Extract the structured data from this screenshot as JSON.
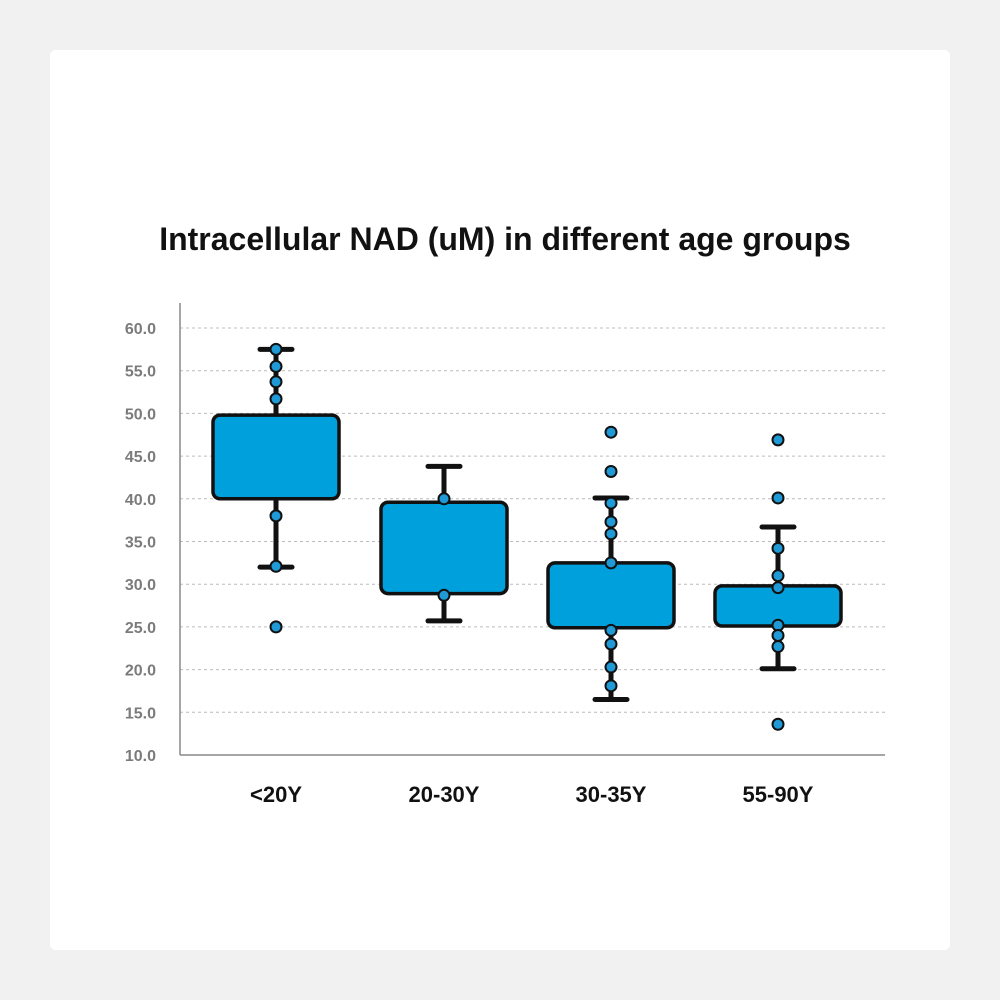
{
  "chart_data": {
    "type": "box",
    "title": "Intracellular NAD (uM) in different age groups",
    "xlabel": "",
    "ylabel": "",
    "ylim": [
      10,
      60
    ],
    "yticks": [
      "10.0",
      "15.0",
      "20.0",
      "25.0",
      "30.0",
      "35.0",
      "40.0",
      "45.0",
      "50.0",
      "55.0",
      "60.0"
    ],
    "grid": true,
    "categories": [
      "<20Y",
      "20-30Y",
      "30-35Y",
      "55-90Y"
    ],
    "boxes": [
      {
        "whisker_low": 32,
        "q1": 40,
        "q3": 49.8,
        "whisker_high": 57.5,
        "points": [
          57.5,
          55.5,
          53.7,
          51.7,
          38,
          32.1,
          25
        ]
      },
      {
        "whisker_low": 25.7,
        "q1": 28.9,
        "q3": 39.6,
        "whisker_high": 43.8,
        "points": [
          40,
          28.7
        ]
      },
      {
        "whisker_low": 16.5,
        "q1": 24.9,
        "q3": 32.5,
        "whisker_high": 40.1,
        "points": [
          47.8,
          43.2,
          39.5,
          37.3,
          35.9,
          32.5,
          24.6,
          23,
          20.3,
          18.1
        ]
      },
      {
        "whisker_low": 20.1,
        "q1": 25.1,
        "q3": 29.8,
        "whisker_high": 36.7,
        "points": [
          46.9,
          40.1,
          34.2,
          31,
          29.6,
          25.2,
          24,
          22.7,
          13.6
        ]
      }
    ],
    "colors": {
      "box_fill": "#00a0dc",
      "stroke": "#111111",
      "point_fill": "#1f9ad6"
    }
  }
}
